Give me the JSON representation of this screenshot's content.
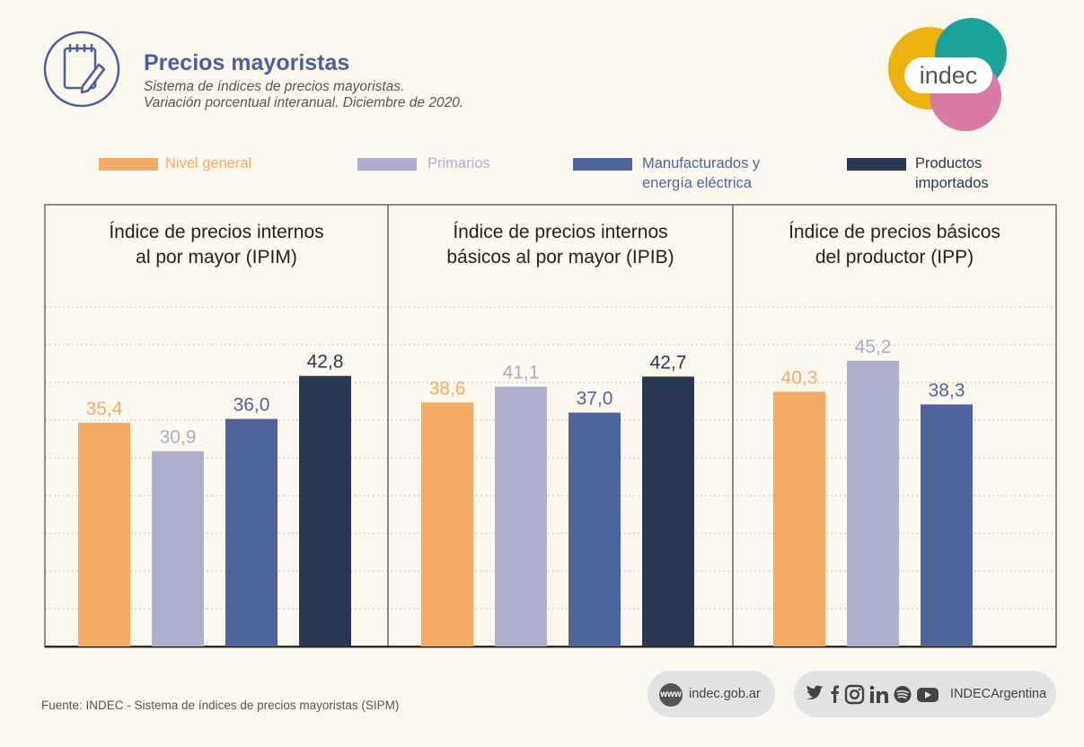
{
  "header": {
    "title": "Precios mayoristas",
    "subtitle_line1": "Sistema de índices de precios mayoristas.",
    "subtitle_line2": "Variación porcentual interanual. Diciembre de 2020."
  },
  "logo": {
    "text": "indec"
  },
  "legend": [
    {
      "line1": "Nivel general",
      "line2": "",
      "color": "#f5ab64"
    },
    {
      "line1": "Primarios",
      "line2": "",
      "color": "#adb0cd"
    },
    {
      "line1": "Manufacturados y",
      "line2": "energía eléctrica",
      "color": "#4f639c"
    },
    {
      "line1": "Productos",
      "line2": "importados",
      "color": "#283752"
    }
  ],
  "chart_data": [
    {
      "type": "bar",
      "title_line1": "Índice de precios internos",
      "title_line2": "al por mayor (IPIM)",
      "categories": [
        "Nivel general",
        "Primarios",
        "Manufacturados y energía eléctrica",
        "Productos importados"
      ],
      "values": [
        35.4,
        30.9,
        36.0,
        42.8
      ],
      "labels": [
        "35,4",
        "30,9",
        "36,0",
        "42,8"
      ],
      "ylim": [
        0,
        45
      ]
    },
    {
      "type": "bar",
      "title_line1": "Índice de precios internos",
      "title_line2": "básicos al por mayor (IPIB)",
      "categories": [
        "Nivel general",
        "Primarios",
        "Manufacturados y energía eléctrica",
        "Productos importados"
      ],
      "values": [
        38.6,
        41.1,
        37.0,
        42.7
      ],
      "labels": [
        "38,6",
        "41,1",
        "37,0",
        "42,7"
      ],
      "ylim": [
        0,
        45
      ]
    },
    {
      "type": "bar",
      "title_line1": "Índice de precios básicos",
      "title_line2": "del productor (IPP)",
      "categories": [
        "Nivel general",
        "Primarios",
        "Manufacturados y energía eléctrica"
      ],
      "values": [
        40.3,
        45.2,
        38.3
      ],
      "labels": [
        "40,3",
        "45,2",
        "38,3"
      ],
      "ylim": [
        0,
        45
      ]
    }
  ],
  "footer": {
    "source": "Fuente: INDEC - Sistema de índices de precios mayoristas (SIPM)",
    "www_badge": "www",
    "website": "indec.gob.ar",
    "social_handle": "INDECArgentina",
    "social_icons": [
      "twitter-icon",
      "facebook-icon",
      "instagram-icon",
      "linkedin-icon",
      "spotify-icon",
      "youtube-icon"
    ]
  }
}
